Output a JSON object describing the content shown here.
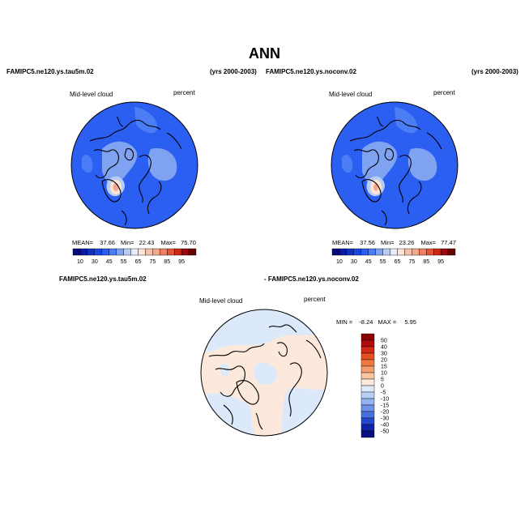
{
  "figure": {
    "title": "ANN",
    "years_label": "(yrs 2000-2003)"
  },
  "colors": {
    "ocean_blue": "#2b5ff2",
    "ocean_dark": "#1b3fd8",
    "land_light": "#7fa3f0",
    "land_lighter": "#b7cdf4",
    "peak_pink": "#f4a58c",
    "peak_light": "#fde3d6",
    "diff_neg": "#dce9fb",
    "diff_pos": "#fde9dc",
    "coast": "#000000"
  },
  "panels": [
    {
      "case": "FAMIPC5.ne120.ys.tau5m.02",
      "variable": "Mid-level cloud",
      "units": "percent",
      "mean_label": "MEAN=",
      "mean": "37.66",
      "min_label": "Min=",
      "min": "22.43",
      "max_label": "Max=",
      "max": "75.70"
    },
    {
      "case": "FAMIPC5.ne120.ys.noconv.02",
      "variable": "Mid-level cloud",
      "units": "percent",
      "mean_label": "MEAN=",
      "mean": "37.56",
      "min_label": "Min=",
      "min": "23.26",
      "max_label": "Max=",
      "max": "77.47"
    }
  ],
  "difference": {
    "case_a": "FAMIPC5.ne120.ys.tau5m.02",
    "case_b": "- FAMIPC5.ne120.ys.noconv.02",
    "variable": "Mid-level cloud",
    "units": "percent",
    "min_label": "MIN =",
    "min": "-8.24",
    "max_label": "MAX =",
    "max": "5.95"
  },
  "chart_data": [
    {
      "type": "heatmap",
      "projection": "polar stereographic (north pole)",
      "name": "FAMIPC5.ne120.ys.tau5m.02 Mid-level cloud",
      "colorbar": {
        "orientation": "horizontal",
        "tick_labels": [
          "10",
          "30",
          "45",
          "55",
          "65",
          "75",
          "85",
          "95"
        ],
        "colors": [
          "#08087a",
          "#0b18a0",
          "#1130c4",
          "#1a48dc",
          "#2b5ff2",
          "#4b7ef4",
          "#7fa3f0",
          "#b7cdf4",
          "#e7eefb",
          "#fde3d6",
          "#f9c2a8",
          "#f4a58c",
          "#ee8060",
          "#e25538",
          "#c92818",
          "#9e0a0a",
          "#6a0000"
        ]
      },
      "stats": {
        "mean": 37.66,
        "min": 22.43,
        "max": 75.7
      }
    },
    {
      "type": "heatmap",
      "projection": "polar stereographic (north pole)",
      "name": "FAMIPC5.ne120.ys.noconv.02 Mid-level cloud",
      "colorbar": {
        "orientation": "horizontal",
        "tick_labels": [
          "10",
          "30",
          "45",
          "55",
          "65",
          "75",
          "85",
          "95"
        ],
        "colors": [
          "#08087a",
          "#0b18a0",
          "#1130c4",
          "#1a48dc",
          "#2b5ff2",
          "#4b7ef4",
          "#7fa3f0",
          "#b7cdf4",
          "#e7eefb",
          "#fde3d6",
          "#f9c2a8",
          "#f4a58c",
          "#ee8060",
          "#e25538",
          "#c92818",
          "#9e0a0a",
          "#6a0000"
        ]
      },
      "stats": {
        "mean": 37.56,
        "min": 23.26,
        "max": 77.47
      }
    },
    {
      "type": "heatmap",
      "projection": "polar stereographic (north pole)",
      "name": "difference",
      "colorbar": {
        "orientation": "vertical",
        "tick_labels": [
          "50",
          "40",
          "30",
          "20",
          "15",
          "10",
          "5",
          "0",
          "-5",
          "-10",
          "-15",
          "-20",
          "-30",
          "-40",
          "-50"
        ],
        "colors": [
          "#8a0000",
          "#b00c0c",
          "#d22a12",
          "#e5501e",
          "#f07a3e",
          "#f59e6c",
          "#f9c4a0",
          "#fde9dc",
          "#dce9fb",
          "#b9d0f6",
          "#93b2f0",
          "#6d92e8",
          "#4670e0",
          "#2448cc",
          "#0f22a8",
          "#061080"
        ]
      },
      "stats": {
        "min": -8.24,
        "max": 5.95
      }
    }
  ]
}
